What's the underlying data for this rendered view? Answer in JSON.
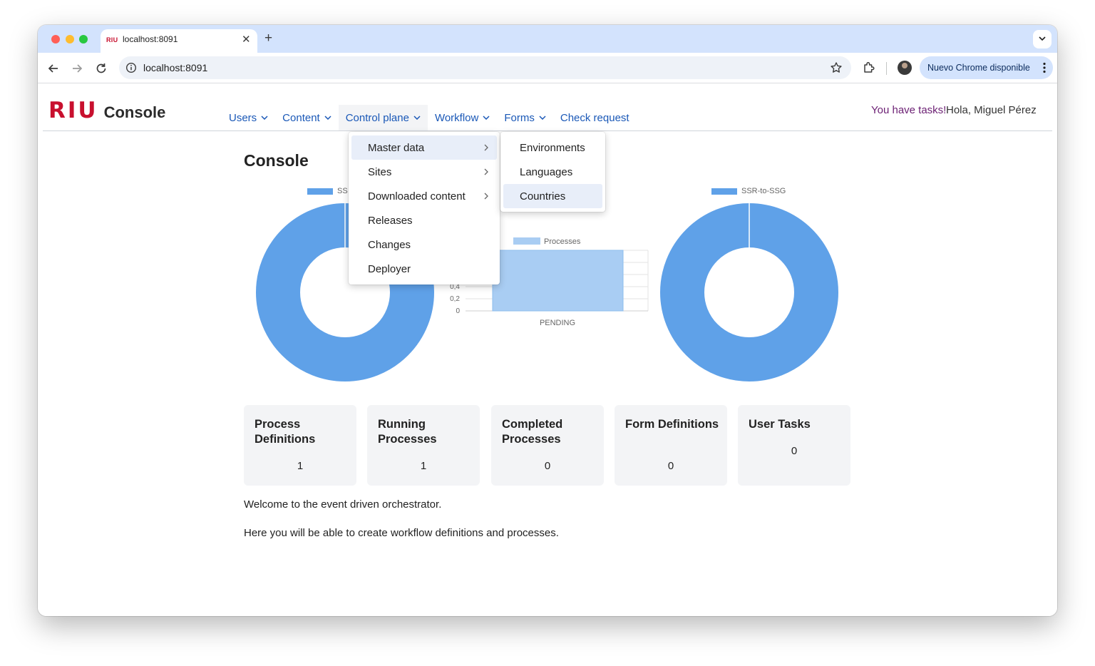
{
  "browser": {
    "tab_favicon_text": "RIU",
    "tab_title": "localhost:8091",
    "url": "localhost:8091",
    "update_button": "Nuevo Chrome disponible"
  },
  "header": {
    "logo_brand": "RIU",
    "logo_product": "Console",
    "nav": [
      {
        "label": "Users",
        "has_dropdown": true
      },
      {
        "label": "Content",
        "has_dropdown": true
      },
      {
        "label": "Control plane",
        "has_dropdown": true
      },
      {
        "label": "Workflow",
        "has_dropdown": true
      },
      {
        "label": "Forms",
        "has_dropdown": true
      },
      {
        "label": "Check request",
        "has_dropdown": false
      }
    ],
    "tasks_link": "You have tasks!",
    "greeting": "Hola, Miguel Pérez"
  },
  "menus": {
    "control_plane": [
      {
        "label": "Master data",
        "has_submenu": true
      },
      {
        "label": "Sites",
        "has_submenu": true
      },
      {
        "label": "Downloaded content",
        "has_submenu": true
      },
      {
        "label": "Releases",
        "has_submenu": false
      },
      {
        "label": "Changes",
        "has_submenu": false
      },
      {
        "label": "Deployer",
        "has_submenu": false
      }
    ],
    "master_data": [
      {
        "label": "Environments"
      },
      {
        "label": "Languages"
      },
      {
        "label": "Countries"
      }
    ]
  },
  "main": {
    "title": "Console",
    "welcome_lines": [
      "Welcome to the event driven orchestrator.",
      "Here you will be able to create workflow definitions and processes."
    ],
    "cards": [
      {
        "title": "Process Definitions",
        "value": "1"
      },
      {
        "title": "Running Processes",
        "value": "1"
      },
      {
        "title": "Completed Processes",
        "value": "0"
      },
      {
        "title": "Form Definitions",
        "value": "0"
      },
      {
        "title": "User Tasks",
        "value": "0"
      }
    ]
  },
  "chart_data": [
    {
      "type": "pie",
      "legend_label": "SS",
      "slices": [
        {
          "label": "SS",
          "value": 1
        }
      ],
      "color": "#5fa1e8"
    },
    {
      "type": "bar",
      "legend_label": "Processes",
      "categories": [
        "PENDING"
      ],
      "values": [
        1
      ],
      "y_tick_labels": [
        "0",
        "0,2",
        "0,4"
      ],
      "color": "#a9cdf3"
    },
    {
      "type": "pie",
      "legend_label": "SSR-to-SSG",
      "slices": [
        {
          "label": "SSR-to-SSG",
          "value": 1
        }
      ],
      "color": "#5fa1e8"
    }
  ],
  "colors": {
    "brand_red": "#c8102e",
    "link_blue": "#1a58b7",
    "chart_blue": "#5fa1e8",
    "bar_blue": "#a9cdf3",
    "tasks_purple": "#6b1f73"
  }
}
